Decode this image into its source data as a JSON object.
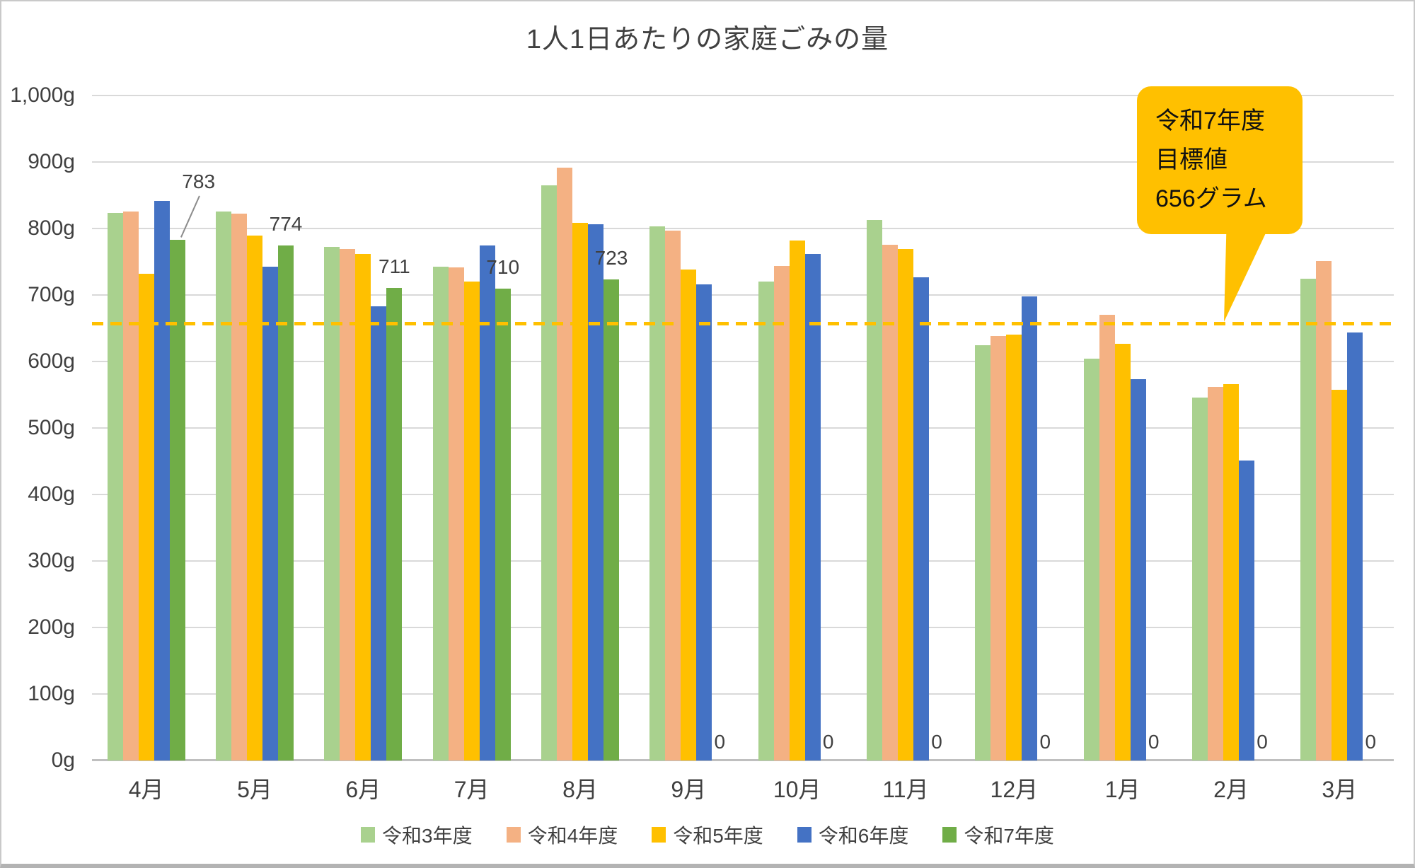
{
  "window": {
    "background": "#FFFFFF",
    "border_color": "#C9C9C9"
  },
  "chart_data": {
    "type": "bar",
    "title": "1人1日あたりの家庭ごみの量",
    "categories": [
      "4月",
      "5月",
      "6月",
      "7月",
      "8月",
      "9月",
      "10月",
      "11月",
      "12月",
      "1月",
      "2月",
      "3月"
    ],
    "series": [
      {
        "name": "令和3年度",
        "color": "#A9D18E",
        "values": [
          823,
          826,
          772,
          743,
          865,
          803,
          720,
          813,
          625,
          604,
          546,
          725
        ]
      },
      {
        "name": "令和4年度",
        "color": "#F4B183",
        "values": [
          826,
          822,
          769,
          741,
          892,
          797,
          744,
          776,
          638,
          670,
          562,
          751
        ]
      },
      {
        "name": "令和5年度",
        "color": "#FFC000",
        "values": [
          732,
          789,
          762,
          720,
          808,
          738,
          782,
          769,
          640,
          627,
          566,
          557
        ]
      },
      {
        "name": "令和6年度",
        "color": "#4472C4",
        "values": [
          841,
          743,
          683,
          774,
          806,
          716,
          762,
          727,
          698,
          573,
          451,
          644
        ]
      },
      {
        "name": "令和7年度",
        "color": "#70AD47",
        "values": [
          783,
          774,
          711,
          710,
          723,
          0,
          0,
          0,
          0,
          0,
          0,
          0
        ],
        "data_labels": true
      }
    ],
    "y_axis": {
      "min": 0,
      "max": 1000,
      "step": 100,
      "unit": "g",
      "tick_labels": [
        "0g",
        "100g",
        "200g",
        "300g",
        "400g",
        "500g",
        "600g",
        "700g",
        "800g",
        "900g",
        "1,000g"
      ]
    },
    "x_axis": {
      "label": ""
    },
    "gridlines": true,
    "gridline_color": "#D9D9D9",
    "axis_line_color": "#BFBFBF",
    "text_color": "#404040",
    "legend_position": "bottom",
    "target_line": {
      "value": 656,
      "color": "#FFC000",
      "style": "dashed"
    },
    "callout": {
      "lines": [
        "令和7年度",
        "目標値",
        "656グラム"
      ],
      "background": "#FFC000",
      "text_color": "#111111",
      "points_to": "target-line"
    }
  }
}
